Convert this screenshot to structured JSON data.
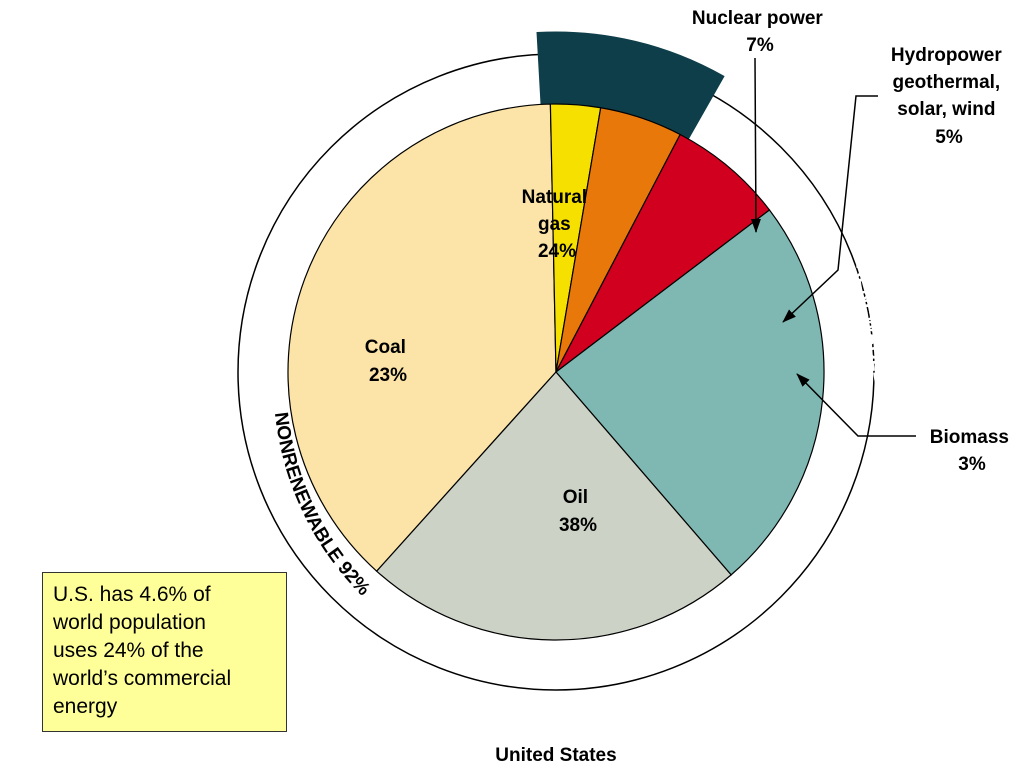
{
  "chart_data": {
    "type": "pie",
    "title": "United States",
    "slices": [
      {
        "key": "oil",
        "label_lines": [
          "Oil"
        ],
        "value_text": "38%",
        "value": 38,
        "color": "#fce4a8"
      },
      {
        "key": "biomass",
        "label_lines": [
          "Biomass"
        ],
        "value_text": "3%",
        "value": 3,
        "color": "#f5e000"
      },
      {
        "key": "hydro",
        "label_lines": [
          "Hydropower",
          "geothermal,",
          "solar, wind"
        ],
        "value_text": "5%",
        "value": 5,
        "color": "#e8780a"
      },
      {
        "key": "nuclear",
        "label_lines": [
          "Nuclear power"
        ],
        "value_text": "7%",
        "value": 7,
        "color": "#d0001e"
      },
      {
        "key": "gas",
        "label_lines": [
          "Natural",
          "gas"
        ],
        "value_text": "24%",
        "value": 24,
        "color": "#7fb8b2"
      },
      {
        "key": "coal",
        "label_lines": [
          "Coal"
        ],
        "value_text": "23%",
        "value": 23,
        "color": "#ccd3c6"
      }
    ],
    "groups": [
      {
        "label": "NONRENEWABLE 92%",
        "value": 92
      },
      {
        "label": "RENEWABLE",
        "value_text": "8%",
        "value": 8,
        "color": "#0e3e4a"
      }
    ]
  },
  "note": {
    "lines": [
      "U.S. has 4.6% of",
      "world population",
      "uses 24% of the",
      "world’s commercial",
      "energy"
    ]
  }
}
